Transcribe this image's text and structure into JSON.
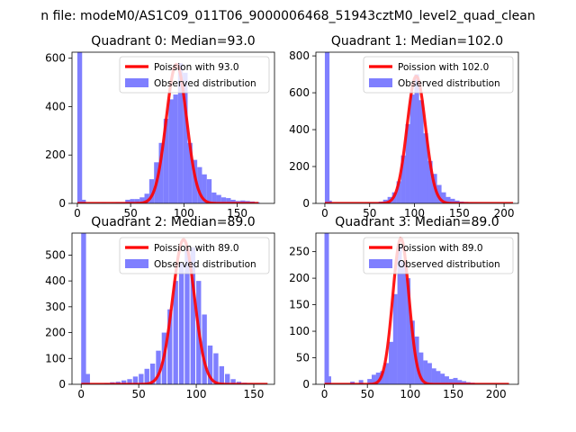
{
  "figure": {
    "suptitle": "n file: modeM0/AS1C09_011T06_9000006468_51943cztM0_level2_quad_clean"
  },
  "colors": {
    "hist": "#7f7fff",
    "fit": "#ff0000"
  },
  "chart_data": [
    {
      "type": "bar+line",
      "title": "Quadrant 0: Median=93.0",
      "xlim": [
        -5,
        185
      ],
      "ylim": [
        0,
        625
      ],
      "xticks": [
        0,
        50,
        100,
        150
      ],
      "yticks": [
        0,
        200,
        400,
        600
      ],
      "legend": {
        "position": "top-right",
        "line": "Poission with 93.0",
        "hist": "Observed distribution"
      },
      "bin_width": 4.5,
      "hist_x": [
        0,
        3.5,
        18,
        22.5,
        27,
        31.5,
        36,
        40.5,
        45,
        49.5,
        54,
        58.5,
        63,
        67.5,
        72,
        76.5,
        81,
        85.5,
        90,
        94.5,
        99,
        103.5,
        108,
        112.5,
        117,
        121.5,
        126,
        130.5,
        135,
        139.5,
        144,
        148.5,
        153,
        157.5,
        162,
        166.5
      ],
      "hist_y": [
        625,
        15,
        2,
        3,
        2,
        3,
        5,
        5,
        15,
        18,
        18,
        25,
        40,
        100,
        170,
        250,
        350,
        430,
        450,
        580,
        540,
        250,
        180,
        150,
        120,
        100,
        45,
        35,
        25,
        22,
        15,
        10,
        12,
        10,
        8,
        5
      ],
      "fit": {
        "mean": 93,
        "peak": 575,
        "sigma": 9.6,
        "xmin": 0,
        "xmax": 170
      }
    },
    {
      "type": "bar+line",
      "title": "Quadrant 1: Median=102.0",
      "xlim": [
        -10,
        216
      ],
      "ylim": [
        0,
        820
      ],
      "xticks": [
        0,
        50,
        100,
        150,
        200
      ],
      "yticks": [
        0,
        200,
        400,
        600,
        800
      ],
      "legend": {
        "position": "top-right",
        "line": "Poission with 102.0",
        "hist": "Observed distribution"
      },
      "bin_width": 5.2,
      "hist_x": [
        0,
        2.6,
        45,
        50,
        55,
        60,
        65,
        70,
        75,
        80,
        85,
        90,
        95,
        100,
        105,
        110,
        115,
        120,
        125,
        130,
        135,
        140,
        145,
        150,
        155,
        160,
        165,
        170,
        175
      ],
      "hist_y": [
        820,
        15,
        3,
        5,
        5,
        10,
        20,
        35,
        60,
        120,
        260,
        430,
        590,
        700,
        560,
        380,
        230,
        160,
        100,
        60,
        35,
        25,
        15,
        10,
        8,
        5,
        4,
        3,
        2
      ],
      "fit": {
        "mean": 102,
        "peak": 690,
        "sigma": 10.3,
        "xmin": 0,
        "xmax": 210
      }
    },
    {
      "type": "bar+line",
      "title": "Quadrant 2: Median=89.0",
      "xlim": [
        -8,
        168
      ],
      "ylim": [
        0,
        585
      ],
      "xticks": [
        0,
        50,
        100,
        150
      ],
      "yticks": [
        0,
        100,
        200,
        300,
        400,
        500
      ],
      "legend": {
        "position": "top-right",
        "line": "Poission with 89.0",
        "hist": "Observed distribution"
      },
      "bin_width": 4.2,
      "hist_x": [
        0,
        3.4,
        20,
        25,
        30,
        35,
        40,
        45,
        50,
        55,
        60,
        65,
        70,
        75,
        80,
        85,
        90,
        95,
        100,
        105,
        110,
        115,
        120,
        125,
        130,
        135,
        140,
        145,
        150
      ],
      "hist_y": [
        585,
        40,
        5,
        8,
        10,
        15,
        20,
        30,
        40,
        60,
        80,
        130,
        200,
        290,
        400,
        470,
        520,
        530,
        400,
        270,
        150,
        120,
        70,
        40,
        20,
        10,
        6,
        4,
        2
      ],
      "fit": {
        "mean": 89,
        "peak": 560,
        "sigma": 9.4,
        "xmin": 0,
        "xmax": 162
      }
    },
    {
      "type": "bar+line",
      "title": "Quadrant 3: Median=89.0",
      "xlim": [
        -10,
        226
      ],
      "ylim": [
        0,
        285
      ],
      "xticks": [
        0,
        50,
        100,
        150,
        200
      ],
      "yticks": [
        0,
        50,
        100,
        150,
        200,
        250
      ],
      "legend": {
        "position": "top-right",
        "line": "Poission with 89.0",
        "hist": "Observed distribution"
      },
      "bin_width": 5.2,
      "hist_x": [
        0,
        2.6,
        30,
        40,
        50,
        55,
        60,
        65,
        70,
        75,
        80,
        85,
        90,
        95,
        100,
        105,
        110,
        115,
        120,
        125,
        130,
        135,
        140,
        145,
        150,
        155,
        160,
        165,
        170
      ],
      "hist_y": [
        285,
        15,
        5,
        8,
        10,
        18,
        22,
        25,
        40,
        80,
        170,
        260,
        230,
        200,
        120,
        90,
        60,
        45,
        40,
        30,
        25,
        20,
        15,
        10,
        12,
        8,
        6,
        4,
        3
      ],
      "fit": {
        "mean": 89,
        "peak": 275,
        "sigma": 9.4,
        "xmin": 0,
        "xmax": 215
      }
    }
  ]
}
